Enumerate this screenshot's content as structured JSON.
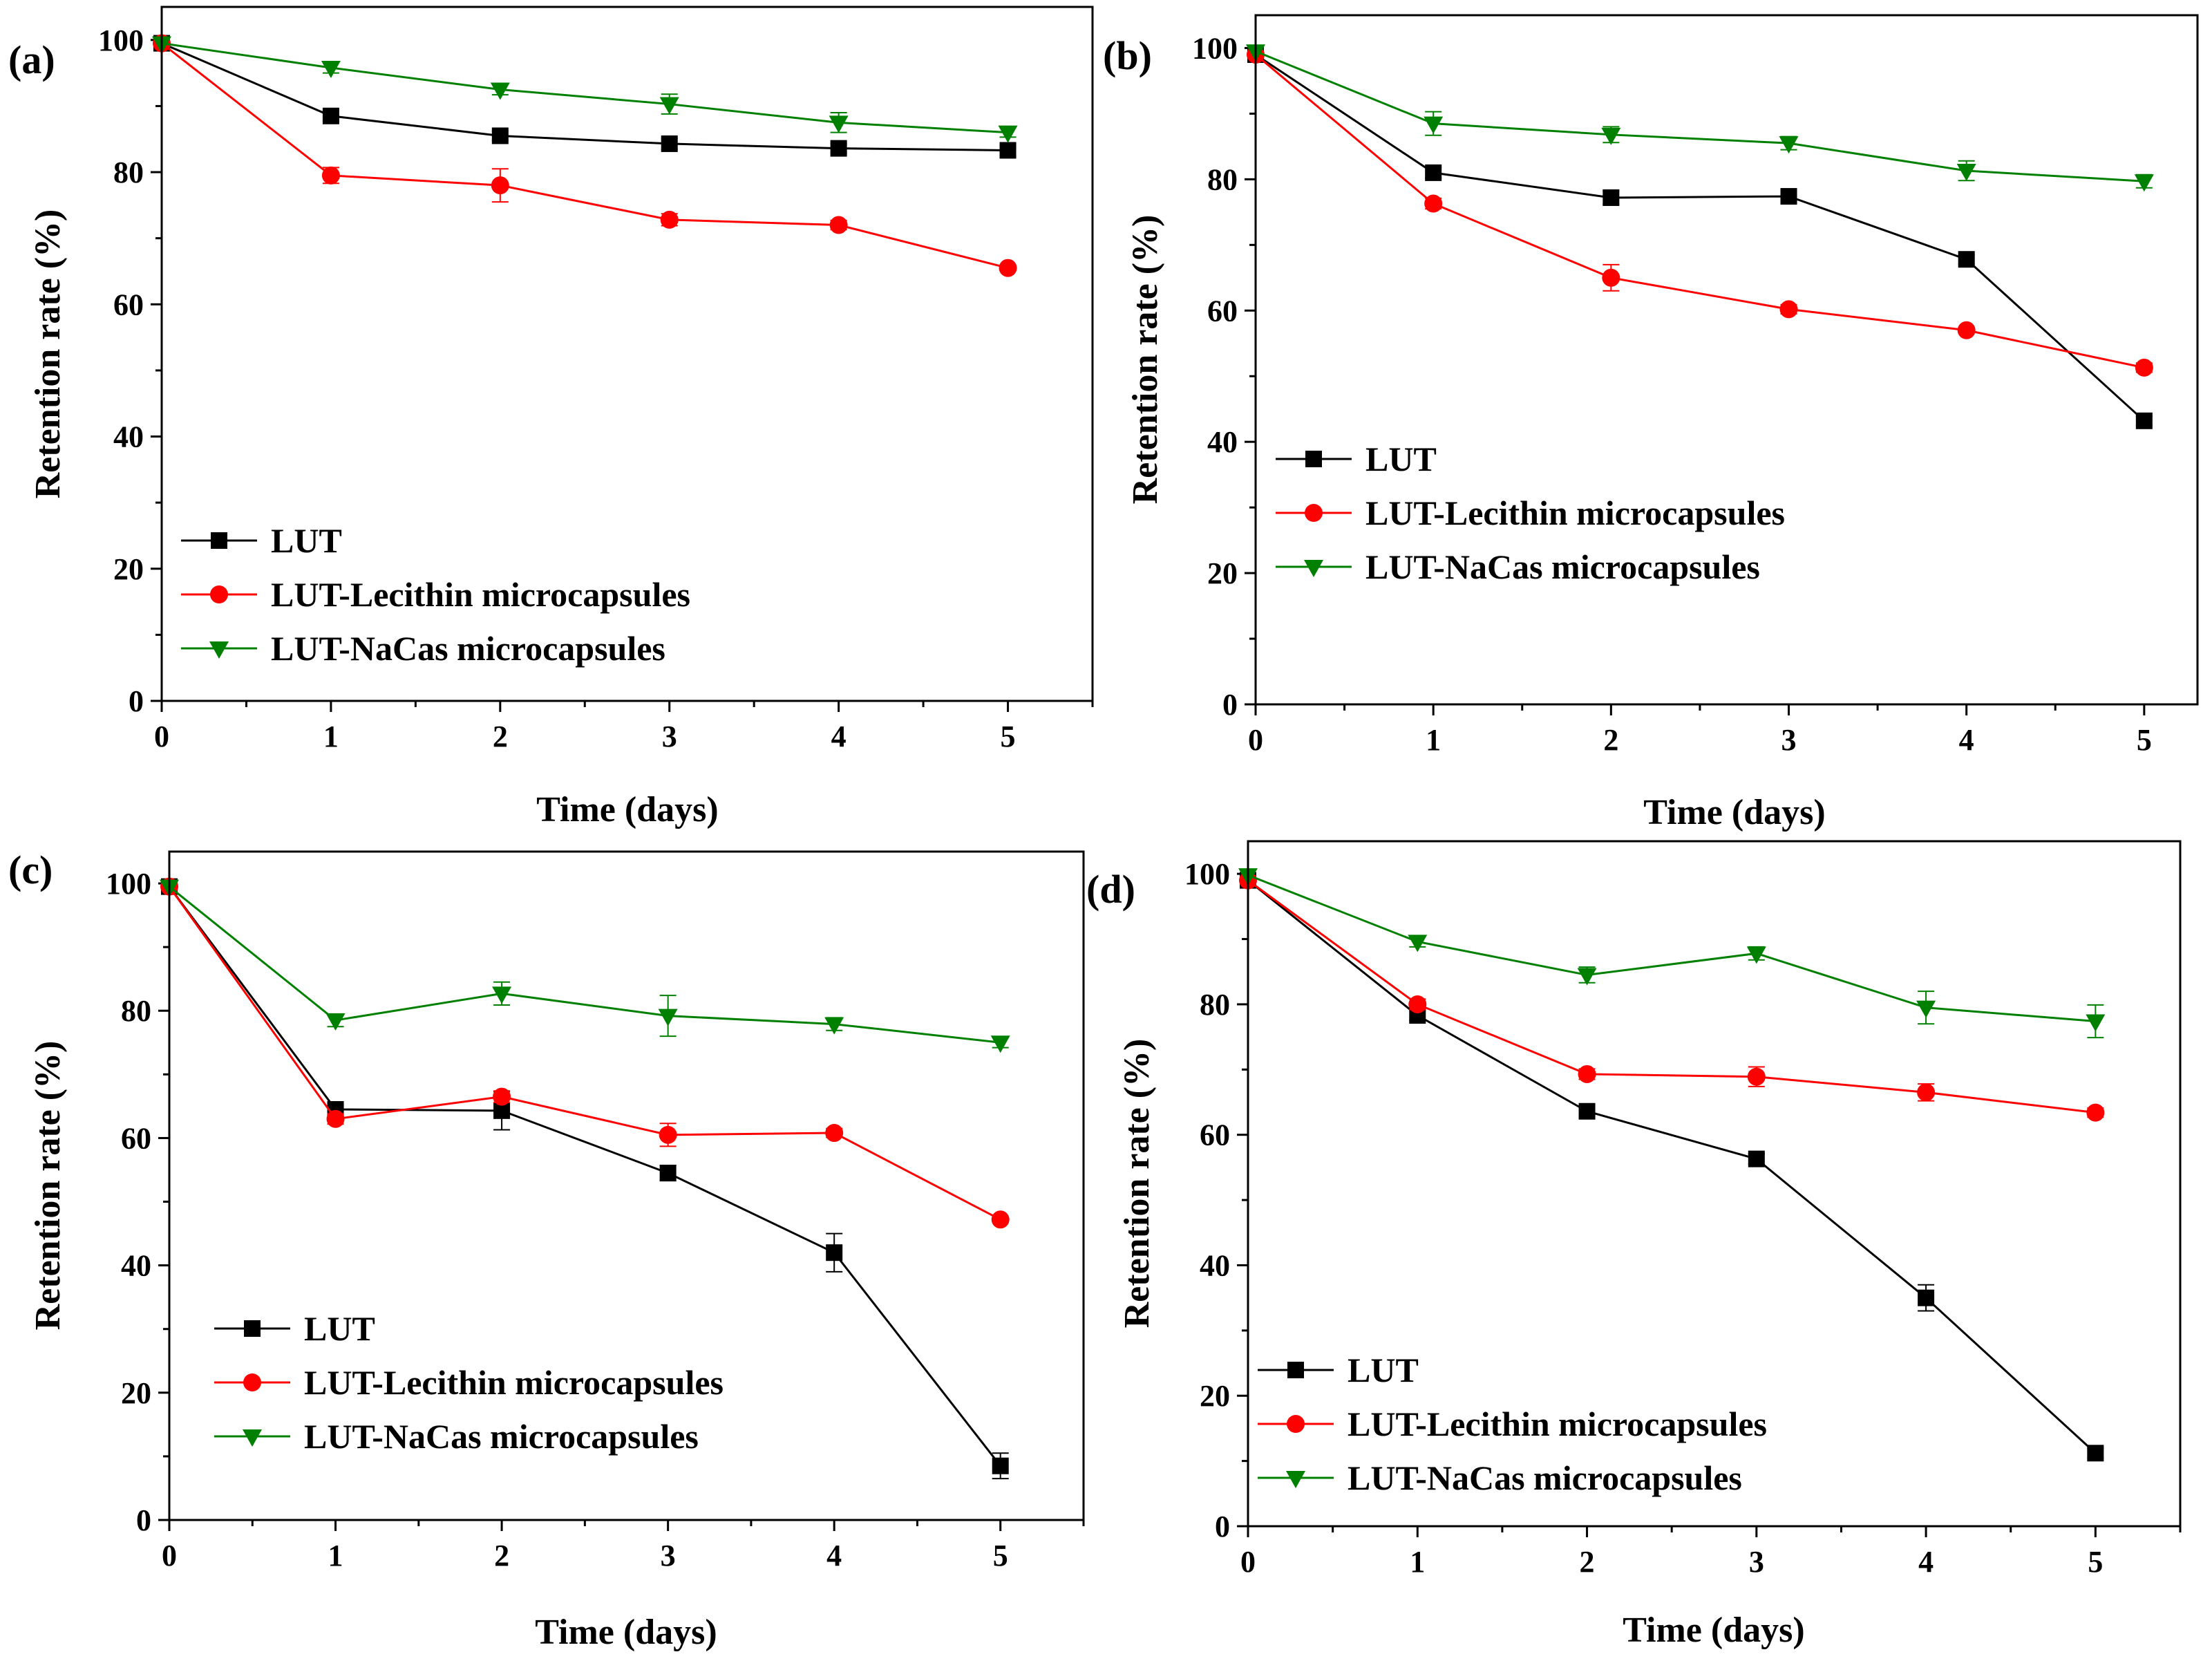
{
  "figure": {
    "x_axis_title": "Time (days)",
    "y_axis_title": "Retention rate (%)"
  },
  "chart_data": [
    {
      "panel": "(a)",
      "type": "line",
      "xlabel": "Time (days)",
      "ylabel": "Retention rate (%)",
      "xlim": [
        0,
        5.5
      ],
      "ylim": [
        0,
        105
      ],
      "x_ticks": [
        0,
        1,
        2,
        3,
        4,
        5
      ],
      "y_ticks": [
        0,
        20,
        40,
        60,
        80,
        100
      ],
      "legend_position": "bottom-left",
      "x": [
        0,
        1,
        2,
        3,
        4,
        5
      ],
      "series": [
        {
          "name": "LUT",
          "color": "#000000",
          "marker": "square",
          "values": [
            99.5,
            88.5,
            85.5,
            84.3,
            83.6,
            83.3
          ],
          "errors": [
            0.5,
            0.8,
            0.7,
            0.8,
            0.7,
            0.7
          ]
        },
        {
          "name": "LUT-Lecithin microcapsules",
          "color": "#ff0000",
          "marker": "circle",
          "values": [
            99.5,
            79.5,
            78.0,
            72.8,
            72.0,
            65.5
          ],
          "errors": [
            0.5,
            1.2,
            2.5,
            0.9,
            0.7,
            0.6
          ]
        },
        {
          "name": "LUT-NaCas microcapsules",
          "color": "#008000",
          "marker": "triangle-down",
          "values": [
            99.5,
            95.8,
            92.5,
            90.3,
            87.5,
            86.0
          ],
          "errors": [
            0.5,
            0.8,
            0.8,
            1.5,
            1.5,
            0.7
          ]
        }
      ]
    },
    {
      "panel": "(b)",
      "type": "line",
      "xlabel": "Time (days)",
      "ylabel": "Retention rate (%)",
      "xlim": [
        0,
        5.3
      ],
      "ylim": [
        0,
        105
      ],
      "x_ticks": [
        0,
        1,
        2,
        3,
        4,
        5
      ],
      "y_ticks": [
        0,
        20,
        40,
        60,
        80,
        100
      ],
      "legend_position": "center-left",
      "x": [
        0,
        1,
        2,
        3,
        4,
        5
      ],
      "series": [
        {
          "name": "LUT",
          "color": "#000000",
          "marker": "square",
          "values": [
            99.0,
            81.0,
            77.2,
            77.4,
            67.8,
            43.2
          ],
          "errors": [
            0.5,
            0.8,
            1.0,
            0.7,
            0.7,
            0.7
          ]
        },
        {
          "name": "LUT-Lecithin microcapsules",
          "color": "#ff0000",
          "marker": "circle",
          "values": [
            99.0,
            76.3,
            65.0,
            60.2,
            57.0,
            51.3
          ],
          "errors": [
            0.5,
            0.8,
            2.0,
            0.7,
            0.6,
            0.7
          ]
        },
        {
          "name": "LUT-NaCas microcapsules",
          "color": "#008000",
          "marker": "triangle-down",
          "values": [
            99.5,
            88.5,
            86.8,
            85.5,
            81.3,
            79.7
          ],
          "errors": [
            0.5,
            1.8,
            1.2,
            1.0,
            1.5,
            1.0
          ]
        }
      ]
    },
    {
      "panel": "(c)",
      "type": "line",
      "xlabel": "Time (days)",
      "ylabel": "Retention rate (%)",
      "xlim": [
        0,
        5.5
      ],
      "ylim": [
        0,
        105
      ],
      "x_ticks": [
        0,
        1,
        2,
        3,
        4,
        5
      ],
      "y_ticks": [
        0,
        20,
        40,
        60,
        80,
        100
      ],
      "legend_position": "bottom-left",
      "x": [
        0,
        1,
        2,
        3,
        4,
        5
      ],
      "series": [
        {
          "name": "LUT",
          "color": "#000000",
          "marker": "square",
          "values": [
            99.5,
            64.5,
            64.3,
            54.5,
            42.0,
            8.5
          ],
          "errors": [
            0.5,
            0.7,
            3.0,
            1.2,
            3.0,
            2.0
          ]
        },
        {
          "name": "LUT-Lecithin microcapsules",
          "color": "#ff0000",
          "marker": "circle",
          "values": [
            99.5,
            63.0,
            66.5,
            60.5,
            60.8,
            47.2
          ],
          "errors": [
            0.5,
            0.8,
            0.9,
            1.8,
            0.7,
            0.6
          ]
        },
        {
          "name": "LUT-NaCas microcapsules",
          "color": "#008000",
          "marker": "triangle-down",
          "values": [
            99.5,
            78.5,
            82.7,
            79.2,
            77.9,
            75.0
          ],
          "errors": [
            0.5,
            1.0,
            1.8,
            3.2,
            1.0,
            0.8
          ]
        }
      ]
    },
    {
      "panel": "(d)",
      "type": "line",
      "xlabel": "Time (days)",
      "ylabel": "Retention rate (%)",
      "xlim": [
        0,
        5.5
      ],
      "ylim": [
        0,
        105
      ],
      "x_ticks": [
        0,
        1,
        2,
        3,
        4,
        5
      ],
      "y_ticks": [
        0,
        20,
        40,
        60,
        80,
        100
      ],
      "legend_position": "bottom-left",
      "x": [
        0,
        1,
        2,
        3,
        4,
        5
      ],
      "series": [
        {
          "name": "LUT",
          "color": "#000000",
          "marker": "square",
          "values": [
            99.0,
            78.3,
            63.6,
            56.3,
            35.0,
            11.2
          ],
          "errors": [
            0.5,
            0.8,
            0.8,
            0.8,
            2.0,
            0.7
          ]
        },
        {
          "name": "LUT-Lecithin microcapsules",
          "color": "#ff0000",
          "marker": "circle",
          "values": [
            99.0,
            80.0,
            69.3,
            68.9,
            66.5,
            63.4
          ],
          "errors": [
            0.5,
            0.8,
            0.8,
            1.5,
            1.3,
            0.7
          ]
        },
        {
          "name": "LUT-NaCas microcapsules",
          "color": "#008000",
          "marker": "triangle-down",
          "values": [
            99.8,
            89.6,
            84.5,
            87.8,
            79.5,
            77.4
          ],
          "errors": [
            0.5,
            0.8,
            1.2,
            1.0,
            2.5,
            2.5
          ]
        }
      ]
    }
  ]
}
